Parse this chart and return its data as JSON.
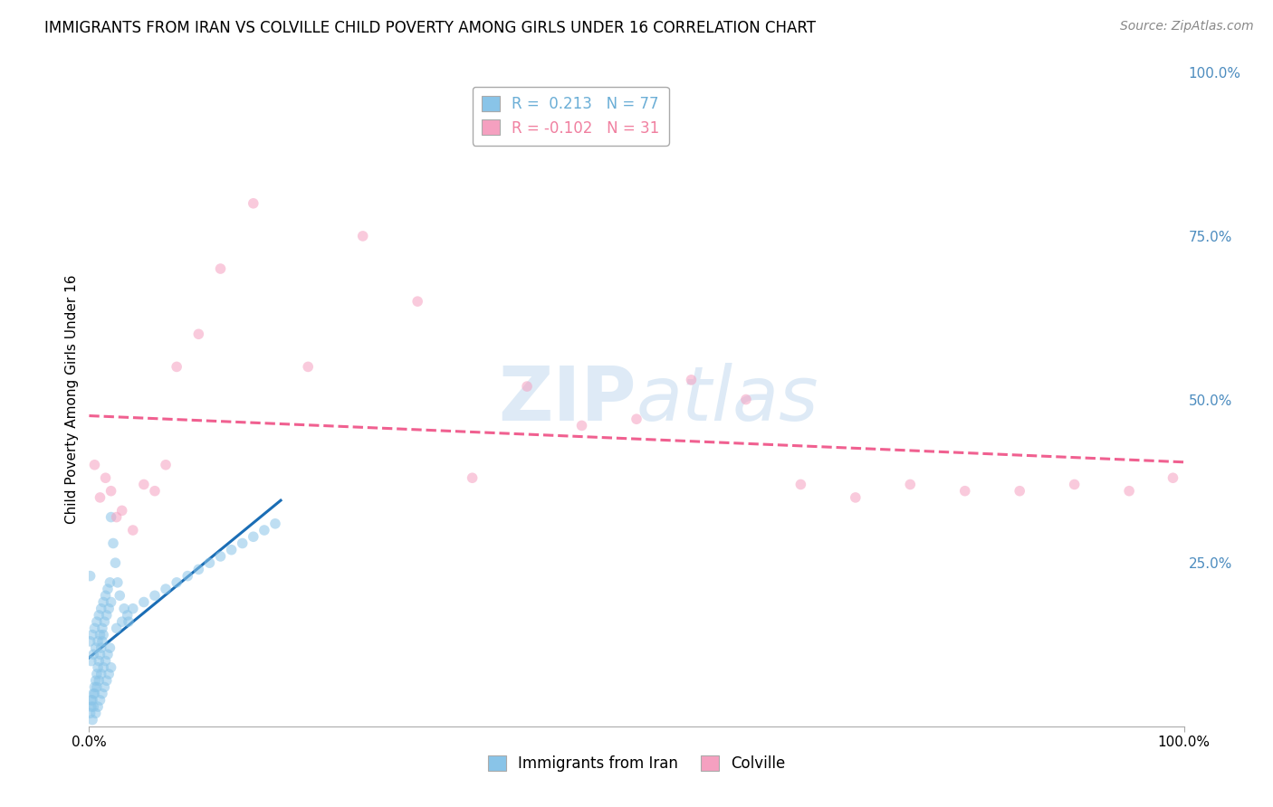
{
  "title": "IMMIGRANTS FROM IRAN VS COLVILLE CHILD POVERTY AMONG GIRLS UNDER 16 CORRELATION CHART",
  "source": "Source: ZipAtlas.com",
  "ylabel": "Child Poverty Among Girls Under 16",
  "legend_entries": [
    {
      "label": "R =  0.213   N = 77",
      "color": "#6baed6"
    },
    {
      "label": "R = -0.102   N = 31",
      "color": "#f080a0"
    }
  ],
  "legend_labels_bottom": [
    "Immigrants from Iran",
    "Colville"
  ],
  "legend_colors_bottom": [
    "#6baed6",
    "#f080a0"
  ],
  "background_color": "#ffffff",
  "grid_color": "#d0d0d0",
  "xmin": 0.0,
  "xmax": 1.0,
  "ymin": 0.0,
  "ymax": 1.0,
  "yticks": [
    0.0,
    0.25,
    0.5,
    0.75,
    1.0
  ],
  "ytick_labels": [
    "",
    "25.0%",
    "50.0%",
    "75.0%",
    "100.0%"
  ],
  "xtick_labels": [
    "0.0%",
    "100.0%"
  ],
  "iran_x": [
    0.001,
    0.002,
    0.003,
    0.004,
    0.005,
    0.006,
    0.007,
    0.008,
    0.009,
    0.01,
    0.011,
    0.012,
    0.013,
    0.014,
    0.015,
    0.016,
    0.017,
    0.018,
    0.019,
    0.02,
    0.001,
    0.002,
    0.003,
    0.004,
    0.005,
    0.006,
    0.007,
    0.008,
    0.009,
    0.01,
    0.011,
    0.012,
    0.013,
    0.014,
    0.015,
    0.016,
    0.017,
    0.018,
    0.019,
    0.02,
    0.001,
    0.002,
    0.003,
    0.004,
    0.005,
    0.006,
    0.007,
    0.008,
    0.009,
    0.01,
    0.011,
    0.012,
    0.013,
    0.025,
    0.03,
    0.035,
    0.04,
    0.05,
    0.06,
    0.07,
    0.08,
    0.09,
    0.1,
    0.11,
    0.12,
    0.13,
    0.14,
    0.15,
    0.16,
    0.17,
    0.02,
    0.022,
    0.024,
    0.026,
    0.028,
    0.032,
    0.036
  ],
  "iran_y": [
    0.02,
    0.04,
    0.01,
    0.03,
    0.05,
    0.02,
    0.06,
    0.03,
    0.07,
    0.04,
    0.08,
    0.05,
    0.09,
    0.06,
    0.1,
    0.07,
    0.11,
    0.08,
    0.12,
    0.09,
    0.13,
    0.1,
    0.14,
    0.11,
    0.15,
    0.12,
    0.16,
    0.13,
    0.17,
    0.14,
    0.18,
    0.15,
    0.19,
    0.16,
    0.2,
    0.17,
    0.21,
    0.18,
    0.22,
    0.19,
    0.23,
    0.03,
    0.04,
    0.05,
    0.06,
    0.07,
    0.08,
    0.09,
    0.1,
    0.11,
    0.12,
    0.13,
    0.14,
    0.15,
    0.16,
    0.17,
    0.18,
    0.19,
    0.2,
    0.21,
    0.22,
    0.23,
    0.24,
    0.25,
    0.26,
    0.27,
    0.28,
    0.29,
    0.3,
    0.31,
    0.32,
    0.28,
    0.25,
    0.22,
    0.2,
    0.18,
    0.16
  ],
  "colville_x": [
    0.005,
    0.01,
    0.015,
    0.02,
    0.025,
    0.03,
    0.04,
    0.05,
    0.06,
    0.07,
    0.08,
    0.1,
    0.12,
    0.15,
    0.2,
    0.25,
    0.3,
    0.35,
    0.4,
    0.45,
    0.5,
    0.55,
    0.6,
    0.65,
    0.7,
    0.75,
    0.8,
    0.85,
    0.9,
    0.95,
    0.99
  ],
  "colville_y": [
    0.4,
    0.35,
    0.38,
    0.36,
    0.32,
    0.33,
    0.3,
    0.37,
    0.36,
    0.4,
    0.55,
    0.6,
    0.7,
    0.8,
    0.55,
    0.75,
    0.65,
    0.38,
    0.52,
    0.46,
    0.47,
    0.53,
    0.5,
    0.37,
    0.35,
    0.37,
    0.36,
    0.36,
    0.37,
    0.36,
    0.38
  ],
  "iran_color": "#89c4e8",
  "colville_color": "#f5a0c0",
  "iran_trend_color": "#1a6db5",
  "colville_trend_color": "#f06090",
  "iran_trend_style": "-",
  "colville_trend_style": "--",
  "marker_size": 70,
  "marker_alpha": 0.55
}
